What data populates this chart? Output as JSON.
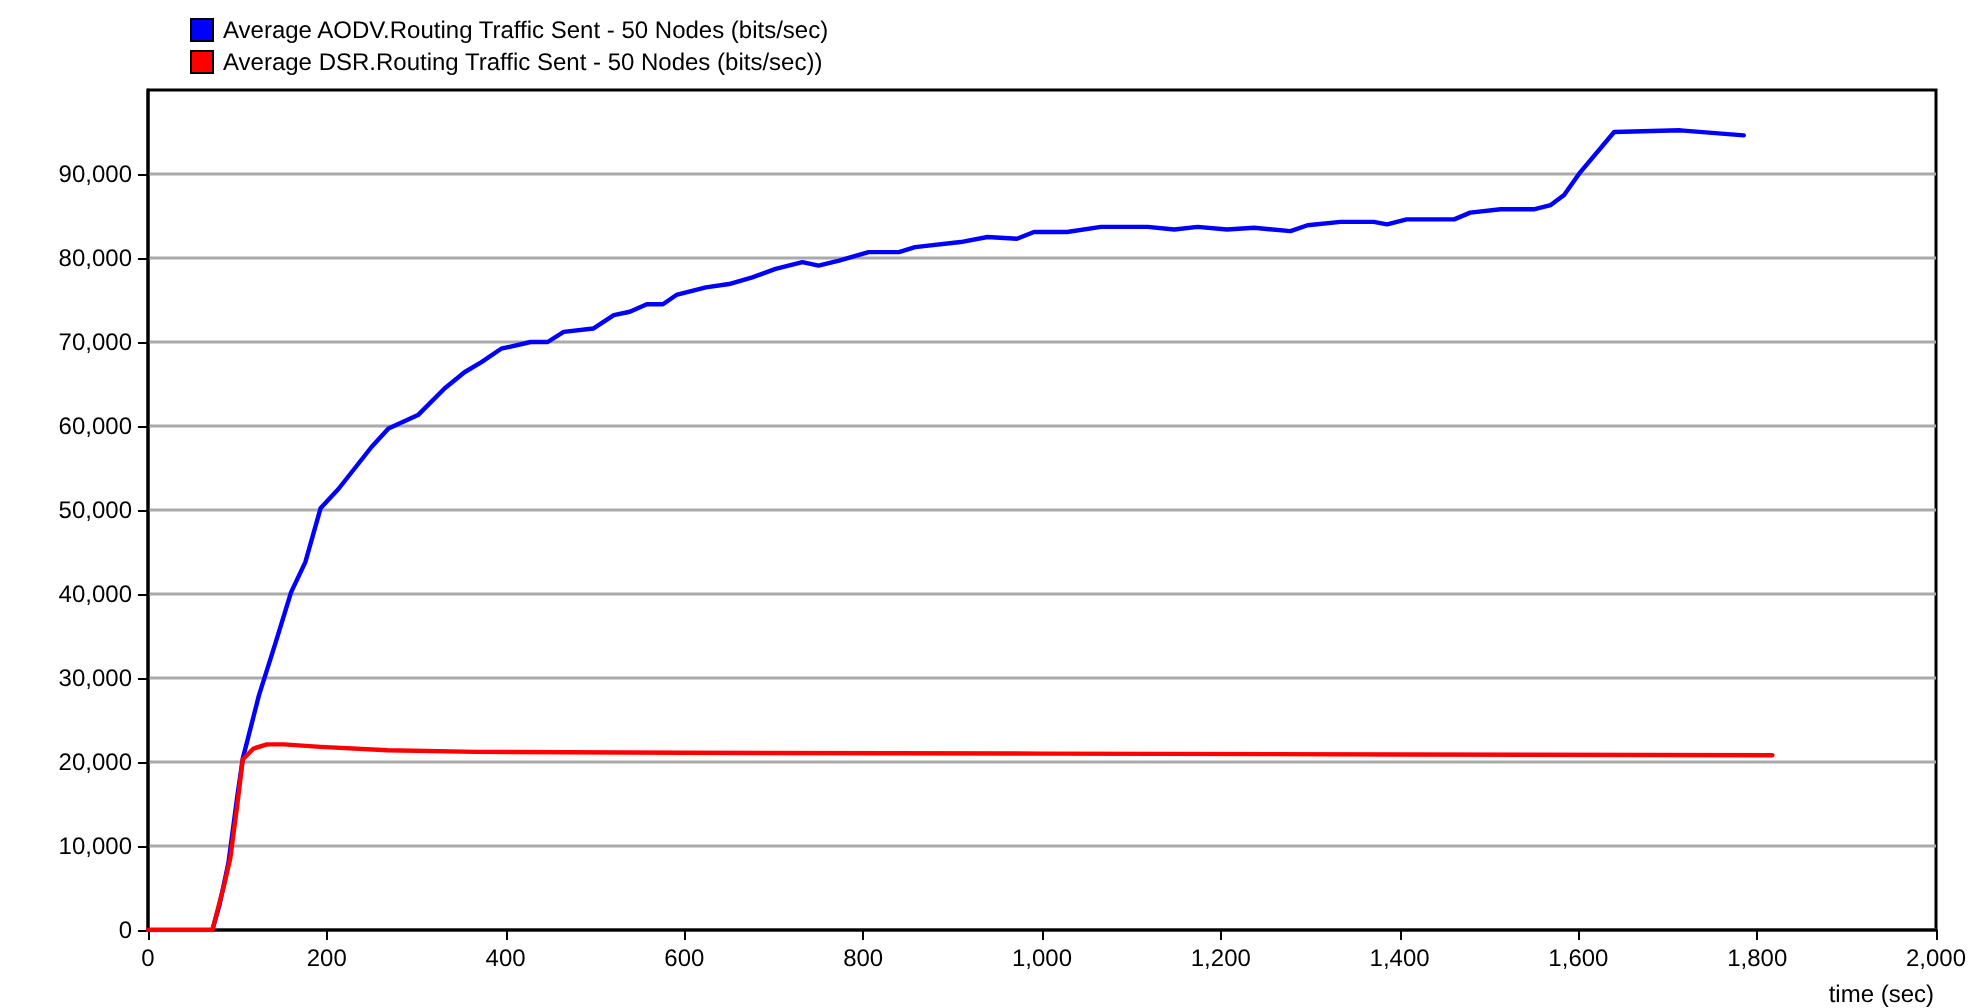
{
  "chart_data": {
    "type": "line",
    "xlabel": "time (sec)",
    "legend": "top left",
    "grid": "y",
    "marker": "none",
    "line_style": "solid",
    "xlim": [
      0,
      2000
    ],
    "xticks": [
      0,
      200,
      400,
      600,
      800,
      {
        "value": 1000,
        "label": "1,000"
      },
      {
        "value": 1200,
        "label": "1,200"
      },
      {
        "value": 1400,
        "label": "1,400"
      },
      {
        "value": 1600,
        "label": "1,600"
      },
      {
        "value": 1800,
        "label": "1,800"
      },
      {
        "value": 2000,
        "label": "2,000"
      }
    ],
    "ylim": [
      0,
      100000
    ],
    "yticks": [
      0,
      {
        "value": 10000,
        "label": "10,000"
      },
      {
        "value": 20000,
        "label": "20,000"
      },
      {
        "value": 30000,
        "label": "30,000"
      },
      {
        "value": 40000,
        "label": "40,000"
      },
      {
        "value": 50000,
        "label": "50,000"
      },
      {
        "value": 60000,
        "label": "60,000"
      },
      {
        "value": 70000,
        "label": "70,000"
      },
      {
        "value": 80000,
        "label": "80,000"
      },
      {
        "value": 90000,
        "label": "90,000"
      }
    ],
    "series": [
      {
        "name": "Average AODV.Routing Traffic Sent - 50 Nodes (bits/sec)",
        "color": "#0000ff",
        "x": [
          0,
          72,
          80,
          90,
          100,
          106,
          124,
          143,
          160,
          176,
          193,
          213,
          250,
          269,
          302,
          332,
          354,
          373,
          395,
          428,
          447,
          465,
          498,
          521,
          539,
          558,
          576,
          591,
          624,
          650,
          676,
          702,
          732,
          750,
          773,
          806,
          840,
          858,
          909,
          939,
          972,
          991,
          1028,
          1066,
          1118,
          1148,
          1174,
          1207,
          1237,
          1278,
          1297,
          1334,
          1371,
          1386,
          1408,
          1461,
          1479,
          1513,
          1550,
          1569,
          1584,
          1602,
          1640,
          1714,
          1785
        ],
        "values": [
          0,
          0,
          3000,
          8000,
          16000,
          20400,
          27900,
          34300,
          40200,
          43800,
          50200,
          52500,
          57500,
          59700,
          61300,
          64500,
          66400,
          67600,
          69200,
          70000,
          70000,
          71200,
          71600,
          73200,
          73600,
          74500,
          74500,
          75600,
          76500,
          76900,
          77700,
          78700,
          79500,
          79100,
          79700,
          80700,
          80700,
          81300,
          81900,
          82500,
          82300,
          83100,
          83100,
          83700,
          83700,
          83400,
          83700,
          83400,
          83600,
          83200,
          83900,
          84300,
          84300,
          84000,
          84600,
          84600,
          85400,
          85800,
          85800,
          86300,
          87500,
          90200,
          95000,
          95200,
          94600
        ]
      },
      {
        "name": "Average DSR.Routing Traffic Sent - 50 Nodes (bits/sec))",
        "color": "#ff0000",
        "x": [
          0,
          72,
          85,
          92,
          100,
          106,
          118,
          133,
          152,
          193,
          268,
          367,
          600,
          1000,
          1400,
          1817
        ],
        "values": [
          0,
          0,
          5300,
          8500,
          15000,
          20300,
          21600,
          22100,
          22100,
          21800,
          21400,
          21200,
          21100,
          21000,
          20900,
          20800
        ]
      }
    ]
  }
}
